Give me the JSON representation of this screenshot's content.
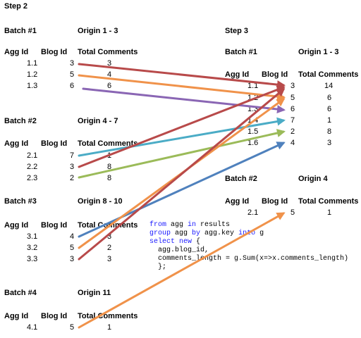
{
  "step2": {
    "title": "Step 2",
    "batches": [
      {
        "label": "Batch #1",
        "origin": "Origin 1 - 3",
        "rows": [
          {
            "agg": "1.1",
            "blog": "3",
            "comments": "3"
          },
          {
            "agg": "1.2",
            "blog": "5",
            "comments": "4"
          },
          {
            "agg": "1.3",
            "blog": "6",
            "comments": "6"
          }
        ]
      },
      {
        "label": "Batch #2",
        "origin": "Origin 4 - 7",
        "rows": [
          {
            "agg": "2.1",
            "blog": "7",
            "comments": "1"
          },
          {
            "agg": "2.2",
            "blog": "3",
            "comments": "8"
          },
          {
            "agg": "2.3",
            "blog": "2",
            "comments": "8"
          }
        ]
      },
      {
        "label": "Batch #3",
        "origin": "Origin 8 - 10",
        "rows": [
          {
            "agg": "3.1",
            "blog": "4",
            "comments": "3"
          },
          {
            "agg": "3.2",
            "blog": "5",
            "comments": "2"
          },
          {
            "agg": "3.3",
            "blog": "3",
            "comments": "3"
          }
        ]
      },
      {
        "label": "Batch #4",
        "origin": "Origin 11",
        "rows": [
          {
            "agg": "4.1",
            "blog": "5",
            "comments": "1"
          }
        ]
      }
    ]
  },
  "step3": {
    "title": "Step 3",
    "batches": [
      {
        "label": "Batch #1",
        "origin": "Origin 1 - 3",
        "rows": [
          {
            "agg": "1.1",
            "blog": "3",
            "comments": "14"
          },
          {
            "agg": "1.2",
            "blog": "5",
            "comments": "6"
          },
          {
            "agg": "1.3",
            "blog": "6",
            "comments": "6"
          },
          {
            "agg": "1.4",
            "blog": "7",
            "comments": "1"
          },
          {
            "agg": "1.5",
            "blog": "2",
            "comments": "8"
          },
          {
            "agg": "1.6",
            "blog": "4",
            "comments": "3"
          }
        ]
      },
      {
        "label": "Batch #2",
        "origin": "Origin 4",
        "rows": [
          {
            "agg": "2.1",
            "blog": "5",
            "comments": "1"
          }
        ]
      }
    ]
  },
  "headers": {
    "agg": "Agg Id",
    "blog": "Blog Id",
    "comments": "Total Comments"
  },
  "code": {
    "line1_kw1": "from",
    "line1_a": " agg ",
    "line1_kw2": "in",
    "line1_b": " results",
    "line2_kw1": "group",
    "line2_a": " agg ",
    "line2_kw2": "by",
    "line2_b": " agg.key ",
    "line2_kw3": "into",
    "line2_c": " g",
    "line3_kw1": "select",
    "line3_kw2": "new",
    "line3_a": " {",
    "line4": "agg.blog_id,",
    "line5": "comments_length = g.Sum(x=>x.comments_length)",
    "line6": "};"
  },
  "arrow_colors": {
    "red": "#b84a4a",
    "orange": "#f0924a",
    "purple": "#8a66b4",
    "teal": "#4bacc6",
    "green": "#9bbb59",
    "blue": "#4f81bd"
  }
}
